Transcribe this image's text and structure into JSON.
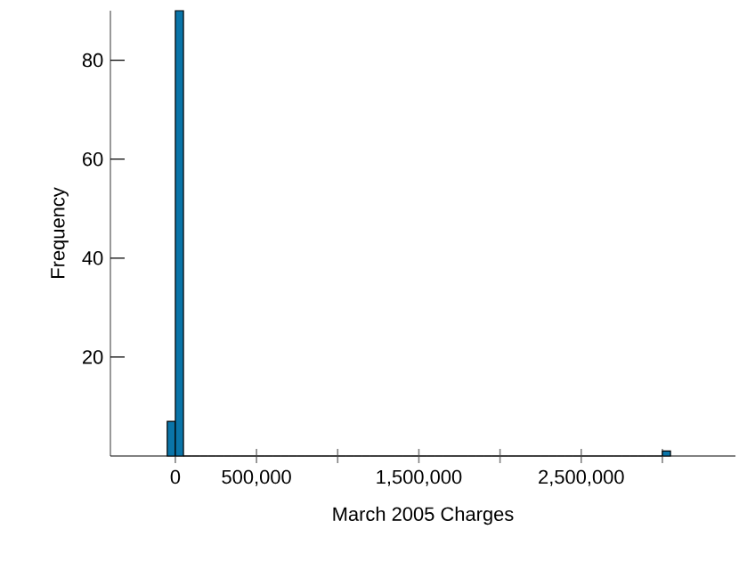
{
  "chart_data": {
    "type": "histogram",
    "xlabel": "March 2005 Charges",
    "ylabel": "Frequency",
    "color": "#0a74a8",
    "bins": [
      -50000,
      0,
      50000,
      100000,
      150000,
      200000,
      250000,
      300000,
      350000,
      400000,
      450000,
      500000,
      550000,
      600000,
      650000,
      700000,
      750000,
      800000,
      850000,
      900000,
      950000,
      1000000,
      1050000,
      1100000,
      1150000,
      1200000,
      1250000,
      1300000,
      1350000,
      1400000,
      1450000,
      1500000,
      1550000,
      1600000,
      1650000,
      1700000,
      1750000,
      1800000,
      1850000,
      1900000,
      1950000,
      2000000,
      2050000,
      2100000,
      2150000,
      2200000,
      2250000,
      2300000,
      2350000,
      2400000,
      2450000,
      2500000,
      2550000,
      2600000,
      2650000,
      2700000,
      2750000,
      2800000,
      2850000,
      2900000,
      2950000,
      3000000,
      3050000
    ],
    "values": [
      7,
      90,
      0,
      0,
      0,
      0,
      0,
      0,
      0,
      0,
      0,
      0,
      0,
      0,
      0,
      0,
      0,
      0,
      0,
      0,
      0,
      0,
      0,
      0,
      0,
      0,
      0,
      0,
      0,
      0,
      0,
      0,
      0,
      0,
      0,
      0,
      0,
      0,
      0,
      0,
      0,
      0,
      0,
      0,
      0,
      0,
      0,
      0,
      0,
      0,
      0,
      0,
      0,
      0,
      0,
      0,
      0,
      0,
      0,
      0,
      0,
      1
    ],
    "xlim": [
      -400000,
      3450000
    ],
    "ylim": [
      0,
      90
    ],
    "xticks": [
      {
        "value": 0,
        "label": "0"
      },
      {
        "value": 500000,
        "label": "500,000"
      },
      {
        "value": 1000000,
        "label": null
      },
      {
        "value": 1500000,
        "label": "1,500,000"
      },
      {
        "value": 2000000,
        "label": null
      },
      {
        "value": 2500000,
        "label": "2,500,000"
      },
      {
        "value": 3000000,
        "label": null
      }
    ],
    "yticks": [
      20,
      40,
      60,
      80
    ]
  }
}
